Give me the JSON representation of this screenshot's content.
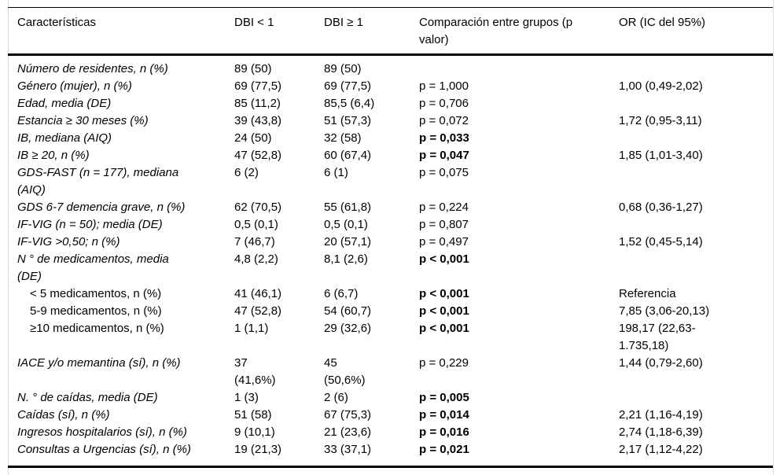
{
  "colors": {
    "background": "#ffffff",
    "text": "#000000",
    "rule": "#000000",
    "edge_line": "#dcdcdc"
  },
  "table": {
    "columns": [
      {
        "key": "label",
        "label": "Características"
      },
      {
        "key": "dbi_lt1",
        "label": "DBI < 1"
      },
      {
        "key": "dbi_ge1",
        "label": "DBI ≥ 1"
      },
      {
        "key": "p",
        "label": "Comparación entre grupos (p\nvalor)"
      },
      {
        "key": "or",
        "label": "OR (IC del 95%)"
      }
    ],
    "rows": [
      {
        "label": "Número de residentes, n (%)",
        "dbi_lt1": "89 (50)",
        "dbi_ge1": "89 (50)",
        "p": "",
        "or": "",
        "italic": true,
        "indent": false,
        "p_bold": false
      },
      {
        "label": "Género (mujer), n (%)",
        "dbi_lt1": "69 (77,5)",
        "dbi_ge1": "69 (77,5)",
        "p": "p = 1,000",
        "or": "1,00 (0,49-2,02)",
        "italic": true,
        "indent": false,
        "p_bold": false
      },
      {
        "label": "Edad, media (DE)",
        "dbi_lt1": "85 (11,2)",
        "dbi_ge1": "85,5 (6,4)",
        "p": "p = 0,706",
        "or": "",
        "italic": true,
        "indent": false,
        "p_bold": false
      },
      {
        "label": "Estancia ≥ 30 meses (%)",
        "dbi_lt1": "39 (43,8)",
        "dbi_ge1": "51 (57,3)",
        "p": "p = 0,072",
        "or": "1,72 (0,95-3,11)",
        "italic": true,
        "indent": false,
        "p_bold": false
      },
      {
        "label": "IB, mediana (AIQ)",
        "dbi_lt1": "24 (50)",
        "dbi_ge1": "32 (58)",
        "p": "p = 0,033",
        "or": "",
        "italic": true,
        "indent": false,
        "p_bold": true
      },
      {
        "label": "IB ≥ 20, n (%)",
        "dbi_lt1": "47 (52,8)",
        "dbi_ge1": "60 (67,4)",
        "p": "p = 0,047",
        "or": "1,85 (1,01-3,40)",
        "italic": true,
        "indent": false,
        "p_bold": true
      },
      {
        "label": "GDS-FAST (n = 177), mediana\n(AIQ)",
        "dbi_lt1": "6 (2)",
        "dbi_ge1": "6 (1)",
        "p": "p = 0,075",
        "or": "",
        "italic": true,
        "indent": false,
        "p_bold": false
      },
      {
        "label": "GDS 6-7 demencia grave, n (%)",
        "dbi_lt1": "62 (70,5)",
        "dbi_ge1": "55 (61,8)",
        "p": "p = 0,224",
        "or": "0,68 (0,36-1,27)",
        "italic": true,
        "indent": false,
        "p_bold": false
      },
      {
        "label": "IF-VIG (n = 50); media (DE)",
        "dbi_lt1": "0,5 (0,1)",
        "dbi_ge1": "0,5 (0,1)",
        "p": "p = 0,807",
        "or": "",
        "italic": true,
        "indent": false,
        "p_bold": false
      },
      {
        "label": "IF-VIG >0,50; n (%)",
        "dbi_lt1": "7 (46,7)",
        "dbi_ge1": "20 (57,1)",
        "p": "p = 0,497",
        "or": "1,52 (0,45-5,14)",
        "italic": true,
        "indent": false,
        "p_bold": false
      },
      {
        "label": "N ° de medicamentos, media\n(DE)",
        "dbi_lt1": "4,8 (2,2)",
        "dbi_ge1": "8,1 (2,6)",
        "p": "p < 0,001",
        "or": "",
        "italic": true,
        "indent": false,
        "p_bold": true
      },
      {
        "label": "< 5 medicamentos, n (%)",
        "dbi_lt1": "41 (46,1)",
        "dbi_ge1": "6 (6,7)",
        "p": "p < 0,001",
        "or": "Referencia",
        "italic": false,
        "indent": true,
        "p_bold": true
      },
      {
        "label": "5-9 medicamentos, n (%)",
        "dbi_lt1": "47 (52,8)",
        "dbi_ge1": "54 (60,7)",
        "p": "p < 0,001",
        "or": "7,85 (3,06-20,13)",
        "italic": false,
        "indent": true,
        "p_bold": true
      },
      {
        "label": "≥10 medicamentos, n (%)",
        "dbi_lt1": "1 (1,1)",
        "dbi_ge1": "29 (32,6)",
        "p": "p < 0,001",
        "or": "198,17 (22,63-\n1.735,18)",
        "italic": false,
        "indent": true,
        "p_bold": true
      },
      {
        "label": "IACE y/o memantina (sí), n (%)",
        "dbi_lt1": "37\n(41,6%)",
        "dbi_ge1": "45\n(50,6%)",
        "p": "p = 0,229",
        "or": "1,44 (0,79-2,60)",
        "italic": true,
        "indent": false,
        "p_bold": false
      },
      {
        "label": "N. ° de caídas, media (DE)",
        "dbi_lt1": "1 (3)",
        "dbi_ge1": "2 (6)",
        "p": "p = 0,005",
        "or": "",
        "italic": true,
        "indent": false,
        "p_bold": true
      },
      {
        "label": "Caídas (sí), n (%)",
        "dbi_lt1": "51 (58)",
        "dbi_ge1": "67 (75,3)",
        "p": "p = 0,014",
        "or": "2,21 (1,16-4,19)",
        "italic": true,
        "indent": false,
        "p_bold": true
      },
      {
        "label": "Ingresos hospitalarios (sí), n (%)",
        "dbi_lt1": "9 (10,1)",
        "dbi_ge1": "21 (23,6)",
        "p": "p = 0,016",
        "or": "2,74 (1,18-6,39)",
        "italic": true,
        "indent": false,
        "p_bold": true
      },
      {
        "label": "Consultas a Urgencias (sí), n (%)",
        "dbi_lt1": "19 (21,3)",
        "dbi_ge1": "33 (37,1)",
        "p": "p = 0,021",
        "or": "2,17 (1,12-4,22)",
        "italic": true,
        "indent": false,
        "p_bold": true
      }
    ]
  }
}
